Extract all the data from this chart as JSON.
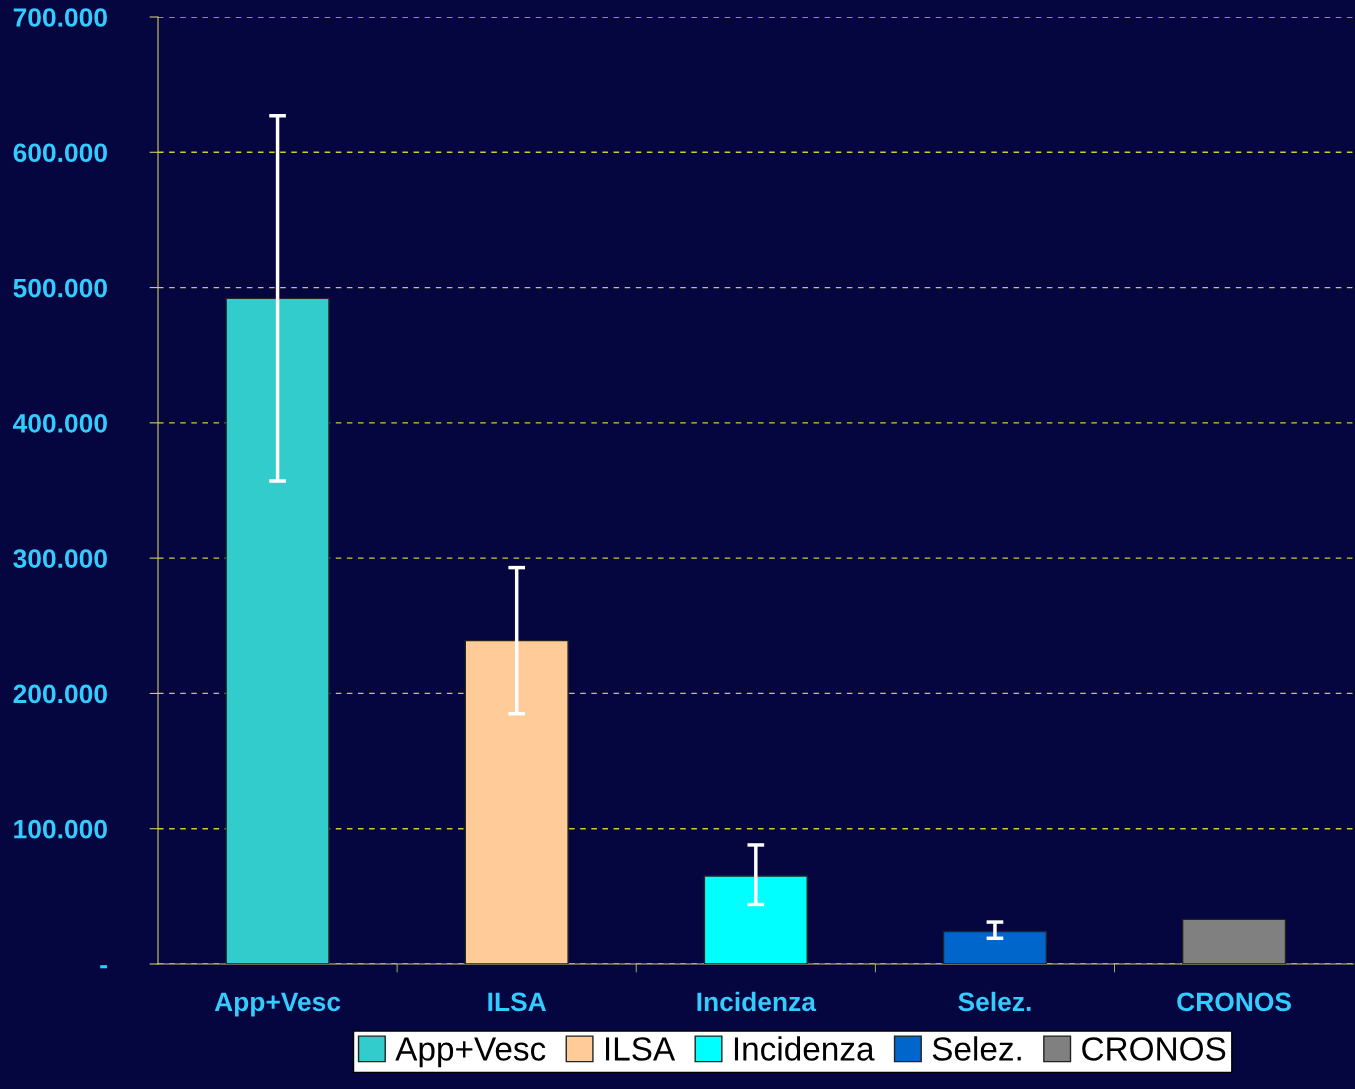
{
  "chart_data": {
    "type": "bar",
    "stacked": true,
    "categories": [
      "App+Vesc",
      "ILSA",
      "Incidenza",
      "Selez.",
      "CRONOS"
    ],
    "series": [
      {
        "name": "App+Vesc",
        "color": "#33cccc",
        "values": [
          492000,
          null,
          null,
          null,
          null
        ],
        "errors": [
          [
            357000,
            627000
          ],
          null,
          null,
          null,
          null
        ]
      },
      {
        "name": "ILSA",
        "color": "#ffcc99",
        "values": [
          null,
          239000,
          null,
          null,
          null
        ],
        "errors": [
          null,
          [
            185000,
            293000
          ],
          null,
          null,
          null
        ]
      },
      {
        "name": "Incidenza",
        "color": "#00ffff",
        "values": [
          null,
          null,
          65000,
          null,
          null
        ],
        "errors": [
          null,
          null,
          [
            44000,
            88000
          ],
          null,
          null
        ]
      },
      {
        "name": "Selez.",
        "color": "#0066cc",
        "values": [
          null,
          null,
          null,
          24000,
          null
        ],
        "errors": [
          null,
          null,
          null,
          [
            19000,
            31000
          ],
          null
        ]
      },
      {
        "name": "CRONOS",
        "color": "#808080",
        "values": [
          null,
          null,
          null,
          null,
          33000
        ]
      }
    ],
    "ylim": [
      0,
      700000
    ],
    "yticks": [
      {
        "value": 0,
        "label": "-"
      },
      {
        "value": 100000,
        "label": "100.000"
      },
      {
        "value": 200000,
        "label": "200.000"
      },
      {
        "value": 300000,
        "label": "300.000"
      },
      {
        "value": 400000,
        "label": "400.000"
      },
      {
        "value": 500000,
        "label": "500.000"
      },
      {
        "value": 600000,
        "label": "600.000"
      },
      {
        "value": 700000,
        "label": "700.000"
      }
    ],
    "grid": "y",
    "legend": "bottom"
  }
}
